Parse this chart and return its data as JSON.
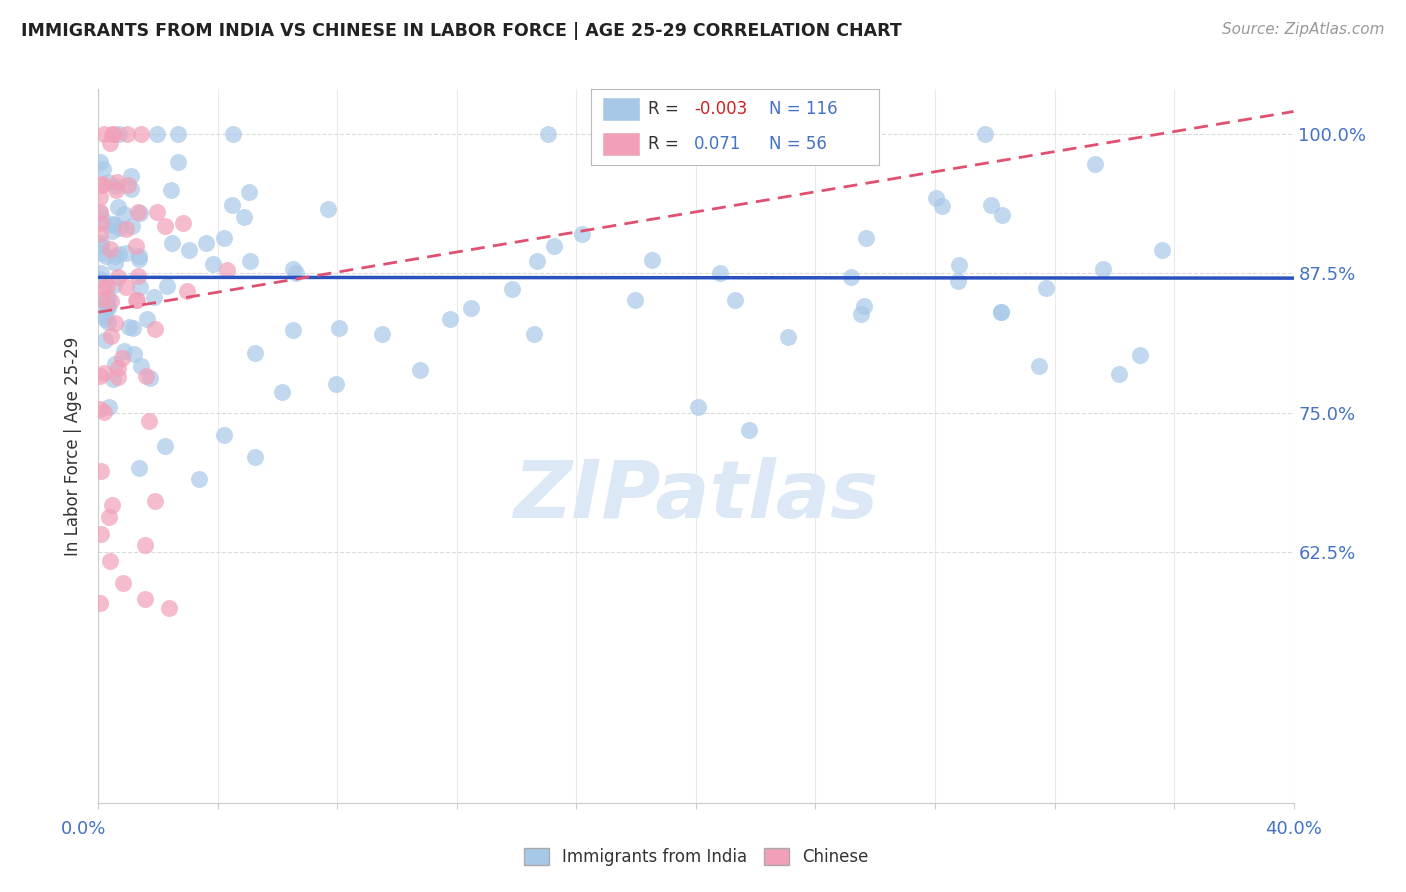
{
  "title": "IMMIGRANTS FROM INDIA VS CHINESE IN LABOR FORCE | AGE 25-29 CORRELATION CHART",
  "source": "Source: ZipAtlas.com",
  "ylabel": "In Labor Force | Age 25-29",
  "xlim": [
    0.0,
    40.0
  ],
  "ylim": [
    40.0,
    104.0
  ],
  "blue_R": -0.003,
  "blue_N": 116,
  "pink_R": 0.071,
  "pink_N": 56,
  "blue_color": "#a8c8e8",
  "pink_color": "#f2a0b8",
  "blue_line_color": "#2a52be",
  "pink_line_color": "#e05070",
  "right_tick_color": "#4472c4",
  "watermark_color": "#dce8f5",
  "grid_color": "#cccccc",
  "title_color": "#222222",
  "source_color": "#999999",
  "ylabel_color": "#333333"
}
